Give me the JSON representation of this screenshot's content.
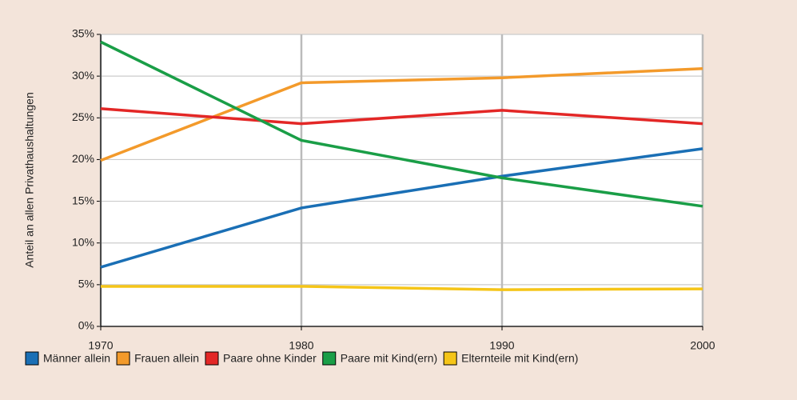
{
  "chart_data": {
    "type": "line",
    "y_label": "Anteil an allen Privathaushaltungen",
    "x": [
      1970,
      1980,
      1990,
      2000
    ],
    "xlim": [
      1970,
      2000
    ],
    "xticks": [
      1970,
      1980,
      1990,
      2000
    ],
    "ylim": [
      0,
      35
    ],
    "yticks": [
      {
        "value": 0,
        "label": "0%"
      },
      {
        "value": 5,
        "label": "5%"
      },
      {
        "value": 10,
        "label": "10%"
      },
      {
        "value": 15,
        "label": "15%"
      },
      {
        "value": 20,
        "label": "20%"
      },
      {
        "value": 25,
        "label": "25%"
      },
      {
        "value": 30,
        "label": "30%"
      },
      {
        "value": 35,
        "label": "35%"
      }
    ],
    "grid": true,
    "legend": "bottom",
    "series": [
      {
        "name": "Männer allein",
        "color": "#1a6fb5",
        "values": [
          7.1,
          14.2,
          18.0,
          21.3
        ]
      },
      {
        "name": "Frauen allein",
        "color": "#f39a2b",
        "values": [
          19.9,
          29.2,
          29.8,
          30.9
        ]
      },
      {
        "name": "Paare ohne Kinder",
        "color": "#e32726",
        "values": [
          26.1,
          24.3,
          25.9,
          24.3
        ]
      },
      {
        "name": "Paare mit Kind(ern)",
        "color": "#1a9e47",
        "values": [
          34.1,
          22.3,
          17.8,
          14.4
        ]
      },
      {
        "name": "Elternteile mit Kind(ern)",
        "color": "#f5c518",
        "values": [
          4.8,
          4.8,
          4.4,
          4.5
        ]
      }
    ]
  }
}
